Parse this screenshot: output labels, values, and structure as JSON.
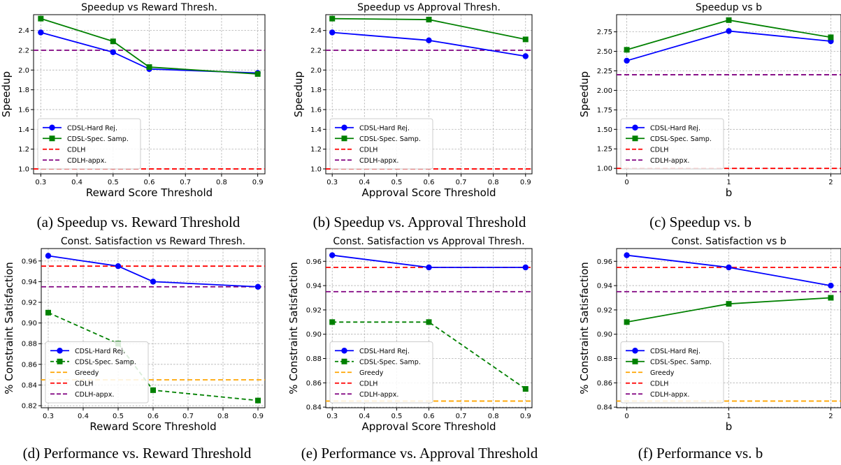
{
  "captions": [
    "(a) Speedup vs. Reward Threshold",
    "(b) Speedup vs. Approval Threshold",
    "(c) Speedup vs. b",
    "(d) Performance vs. Reward Threshold",
    "(e) Performance vs. Approval Threshold",
    "(f) Performance vs. b"
  ],
  "colors": {
    "hard_rej": "#0000ff",
    "spec_samp": "#008000",
    "cdlh": "#ff0000",
    "cdlh_appx": "#800080",
    "greedy": "#ffa500"
  },
  "chart_data": [
    {
      "type": "line",
      "title": "Speedup vs Reward Thresh.",
      "xlabel": "Reward Score Threshold",
      "ylabel": "Speedup",
      "xlim": [
        0.28,
        0.92
      ],
      "ylim": [
        0.95,
        2.56
      ],
      "xticks": [
        0.3,
        0.4,
        0.5,
        0.6,
        0.7,
        0.8,
        0.9
      ],
      "xticklabels": [
        "0.3",
        "0.4",
        "0.5",
        "0.6",
        "0.7",
        "0.8",
        "0.9"
      ],
      "yticks": [
        1.0,
        1.2,
        1.4,
        1.6,
        1.8,
        2.0,
        2.2,
        2.4
      ],
      "yticklabels": [
        "1.0",
        "1.2",
        "1.4",
        "1.6",
        "1.8",
        "2.0",
        "2.2",
        "2.4"
      ],
      "grid": true,
      "legend": "lower left",
      "series": [
        {
          "name": "CDSL-Hard Rej.",
          "style": "hard_rej",
          "x": [
            0.3,
            0.5,
            0.6,
            0.9
          ],
          "values": [
            2.38,
            2.18,
            2.01,
            1.97
          ]
        },
        {
          "name": "CDSL-Spec. Samp.",
          "style": "spec_samp",
          "x": [
            0.3,
            0.5,
            0.6,
            0.9
          ],
          "values": [
            2.52,
            2.29,
            2.03,
            1.96
          ]
        }
      ],
      "hlines": [
        {
          "name": "CDLH",
          "style": "cdlh",
          "value": 1.0
        },
        {
          "name": "CDLH-appx.",
          "style": "cdlh_appx",
          "value": 2.2
        }
      ]
    },
    {
      "type": "line",
      "title": "Speedup vs Approval Thresh.",
      "xlabel": "Approval Score Threshold",
      "ylabel": "Speedup",
      "xlim": [
        0.28,
        0.92
      ],
      "ylim": [
        0.95,
        2.56
      ],
      "xticks": [
        0.3,
        0.4,
        0.5,
        0.6,
        0.7,
        0.8,
        0.9
      ],
      "xticklabels": [
        "0.3",
        "0.4",
        "0.5",
        "0.6",
        "0.7",
        "0.8",
        "0.9"
      ],
      "yticks": [
        1.0,
        1.2,
        1.4,
        1.6,
        1.8,
        2.0,
        2.2,
        2.4
      ],
      "yticklabels": [
        "1.0",
        "1.2",
        "1.4",
        "1.6",
        "1.8",
        "2.0",
        "2.2",
        "2.4"
      ],
      "grid": true,
      "legend": "lower left",
      "series": [
        {
          "name": "CDSL-Hard Rej.",
          "style": "hard_rej",
          "x": [
            0.3,
            0.6,
            0.9
          ],
          "values": [
            2.38,
            2.3,
            2.14
          ]
        },
        {
          "name": "CDSL-Spec. Samp.",
          "style": "spec_samp",
          "x": [
            0.3,
            0.6,
            0.9
          ],
          "values": [
            2.52,
            2.51,
            2.31
          ]
        }
      ],
      "hlines": [
        {
          "name": "CDLH",
          "style": "cdlh",
          "value": 1.0
        },
        {
          "name": "CDLH-appx.",
          "style": "cdlh_appx",
          "value": 2.2
        }
      ]
    },
    {
      "type": "line",
      "title": "Speedup vs b",
      "xlabel": "b",
      "ylabel": "Speedup",
      "xlim": [
        -0.1,
        2.1
      ],
      "ylim": [
        0.93,
        2.97
      ],
      "xticks": [
        0,
        1,
        2
      ],
      "xticklabels": [
        "0",
        "1",
        "2"
      ],
      "yticks": [
        1.0,
        1.25,
        1.5,
        1.75,
        2.0,
        2.25,
        2.5,
        2.75
      ],
      "yticklabels": [
        "1.00",
        "1.25",
        "1.50",
        "1.75",
        "2.00",
        "2.25",
        "2.50",
        "2.75"
      ],
      "grid": true,
      "legend": "lower left",
      "series": [
        {
          "name": "CDSL-Hard Rej.",
          "style": "hard_rej",
          "x": [
            0,
            1,
            2
          ],
          "values": [
            2.38,
            2.76,
            2.63
          ]
        },
        {
          "name": "CDSL-Spec. Samp.",
          "style": "spec_samp",
          "x": [
            0,
            1,
            2
          ],
          "values": [
            2.52,
            2.9,
            2.68
          ]
        }
      ],
      "hlines": [
        {
          "name": "CDLH",
          "style": "cdlh",
          "value": 1.0
        },
        {
          "name": "CDLH-appx.",
          "style": "cdlh_appx",
          "value": 2.2
        }
      ]
    },
    {
      "type": "line",
      "title": "Const. Satisfaction vs Reward Thresh.",
      "xlabel": "Reward Score Threshold",
      "ylabel": "% Constraint Satisfaction",
      "xlim": [
        0.28,
        0.92
      ],
      "ylim": [
        0.818,
        0.972
      ],
      "xticks": [
        0.3,
        0.4,
        0.5,
        0.6,
        0.7,
        0.8,
        0.9
      ],
      "xticklabels": [
        "0.3",
        "0.4",
        "0.5",
        "0.6",
        "0.7",
        "0.8",
        "0.9"
      ],
      "yticks": [
        0.82,
        0.84,
        0.86,
        0.88,
        0.9,
        0.92,
        0.94,
        0.96
      ],
      "yticklabels": [
        "0.82",
        "0.84",
        "0.86",
        "0.88",
        "0.90",
        "0.92",
        "0.94",
        "0.96"
      ],
      "grid": true,
      "legend": "lower left",
      "series": [
        {
          "name": "CDSL-Hard Rej.",
          "style": "hard_rej",
          "x": [
            0.3,
            0.5,
            0.6,
            0.9
          ],
          "values": [
            0.965,
            0.955,
            0.94,
            0.935
          ]
        },
        {
          "name": "CDSL-Spec. Samp.",
          "style": "spec_samp",
          "dashed": true,
          "x": [
            0.3,
            0.5,
            0.6,
            0.9
          ],
          "values": [
            0.91,
            0.88,
            0.835,
            0.825
          ]
        }
      ],
      "hlines": [
        {
          "name": "Greedy",
          "style": "greedy",
          "value": 0.845
        },
        {
          "name": "CDLH",
          "style": "cdlh",
          "value": 0.955
        },
        {
          "name": "CDLH-appx.",
          "style": "cdlh_appx",
          "value": 0.935
        }
      ]
    },
    {
      "type": "line",
      "title": "Const. Satisfaction vs Approval Thresh.",
      "xlabel": "Approval Score Threshold",
      "ylabel": "% Constraint Satisfaction",
      "xlim": [
        0.28,
        0.92
      ],
      "ylim": [
        0.8395,
        0.9705
      ],
      "xticks": [
        0.3,
        0.4,
        0.5,
        0.6,
        0.7,
        0.8,
        0.9
      ],
      "xticklabels": [
        "0.3",
        "0.4",
        "0.5",
        "0.6",
        "0.7",
        "0.8",
        "0.9"
      ],
      "yticks": [
        0.84,
        0.86,
        0.88,
        0.9,
        0.92,
        0.94,
        0.96
      ],
      "yticklabels": [
        "0.84",
        "0.86",
        "0.88",
        "0.90",
        "0.92",
        "0.94",
        "0.96"
      ],
      "grid": true,
      "legend": "lower left",
      "series": [
        {
          "name": "CDSL-Hard Rej.",
          "style": "hard_rej",
          "x": [
            0.3,
            0.6,
            0.9
          ],
          "values": [
            0.965,
            0.955,
            0.955
          ]
        },
        {
          "name": "CDSL-Spec. Samp.",
          "style": "spec_samp",
          "dashed": true,
          "x": [
            0.3,
            0.6,
            0.9
          ],
          "values": [
            0.91,
            0.91,
            0.855
          ]
        }
      ],
      "hlines": [
        {
          "name": "Greedy",
          "style": "greedy",
          "value": 0.845
        },
        {
          "name": "CDLH",
          "style": "cdlh",
          "value": 0.955
        },
        {
          "name": "CDLH-appx.",
          "style": "cdlh_appx",
          "value": 0.935
        }
      ]
    },
    {
      "type": "line",
      "title": "Const. Satisfaction vs b",
      "xlabel": "b",
      "ylabel": "% Constraint Satisfaction",
      "xlim": [
        -0.1,
        2.1
      ],
      "ylim": [
        0.8395,
        0.9705
      ],
      "xticks": [
        0,
        1,
        2
      ],
      "xticklabels": [
        "0",
        "1",
        "2"
      ],
      "yticks": [
        0.84,
        0.86,
        0.88,
        0.9,
        0.92,
        0.94,
        0.96
      ],
      "yticklabels": [
        "0.84",
        "0.86",
        "0.88",
        "0.90",
        "0.92",
        "0.94",
        "0.96"
      ],
      "grid": true,
      "legend": "lower left",
      "series": [
        {
          "name": "CDSL-Hard Rej.",
          "style": "hard_rej",
          "x": [
            0,
            1,
            2
          ],
          "values": [
            0.965,
            0.955,
            0.94
          ]
        },
        {
          "name": "CDSL-Spec. Samp.",
          "style": "spec_samp",
          "x": [
            0,
            1,
            2
          ],
          "values": [
            0.91,
            0.925,
            0.93
          ]
        }
      ],
      "hlines": [
        {
          "name": "Greedy",
          "style": "greedy",
          "value": 0.845
        },
        {
          "name": "CDLH",
          "style": "cdlh",
          "value": 0.955
        },
        {
          "name": "CDLH-appx.",
          "style": "cdlh_appx",
          "value": 0.935
        }
      ]
    }
  ]
}
